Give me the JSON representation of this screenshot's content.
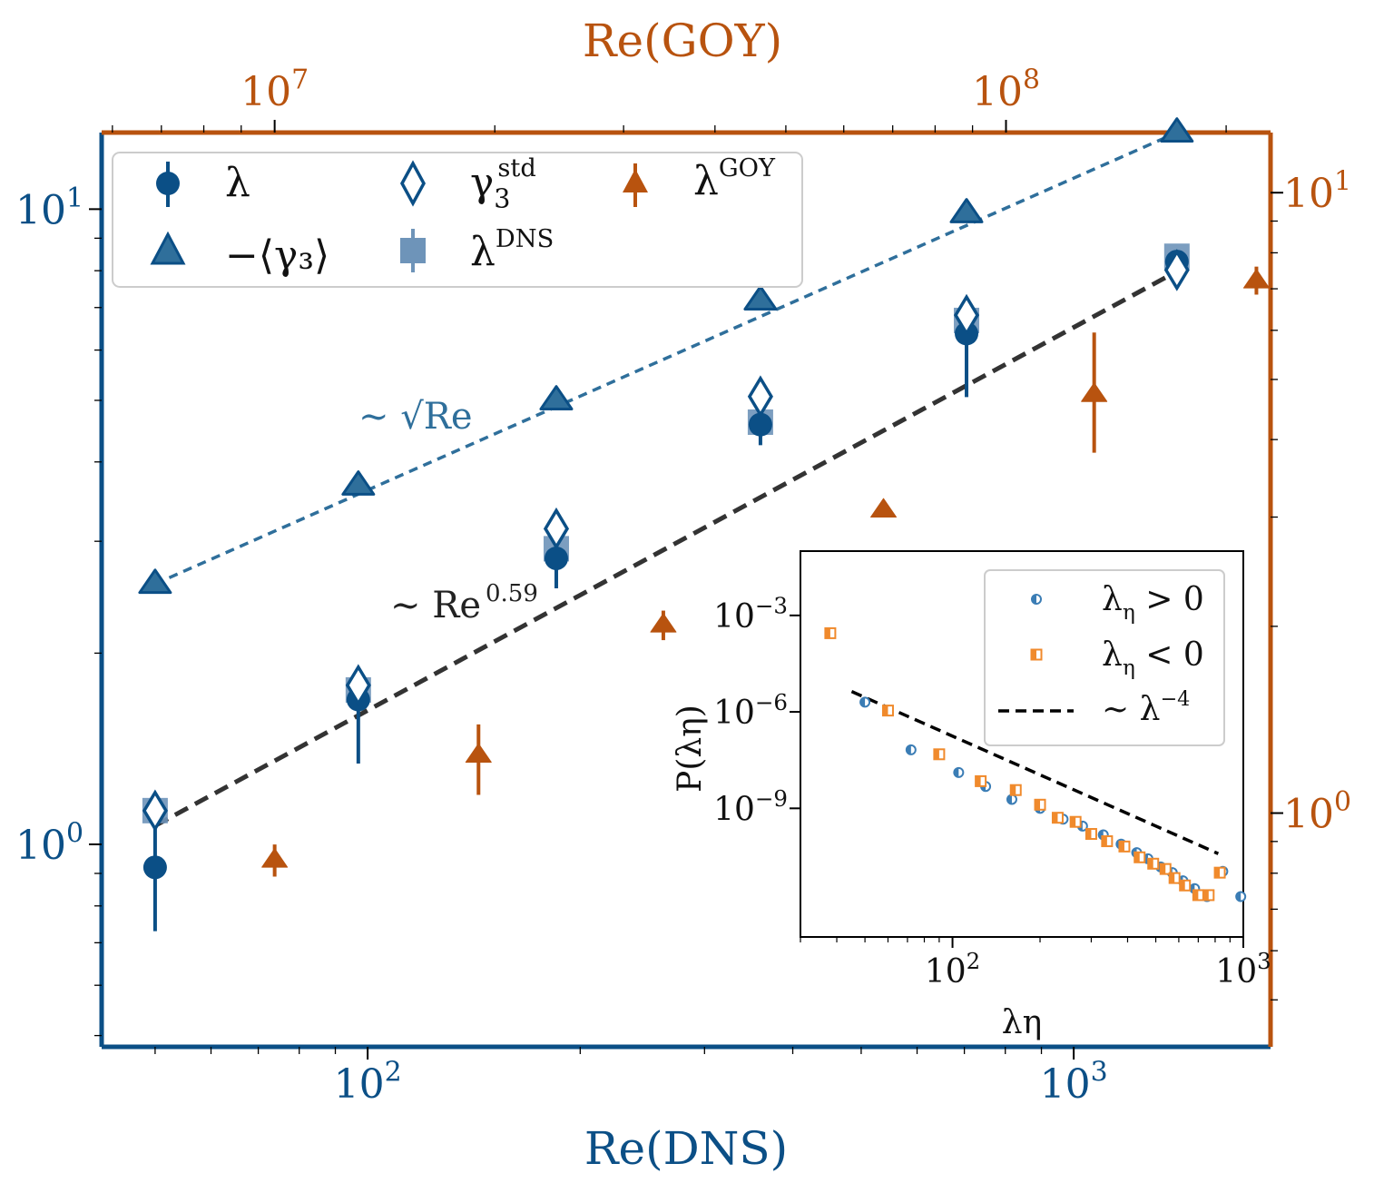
{
  "colors": {
    "dns_blue": "#0b4f86",
    "goy_orange": "#b8530f",
    "gamma_blue": "#2f6f9b",
    "square_blue": "#6e94b9",
    "fit_black": "#333333",
    "inset_pos": "#3b7db5",
    "inset_neg": "#f08a2c"
  },
  "chart_data": [
    {
      "id": "main",
      "type": "scatter",
      "xlabel": "Re(DNS)",
      "x2label": "Re(GOY)",
      "xscale": "log",
      "yscale": "log",
      "xlim": [
        42,
        1900
      ],
      "ylim": [
        0.48,
        13.2
      ],
      "x2lim": [
        5800000.0,
        230000000.0
      ],
      "y2lim": [
        0.42,
        12.5
      ],
      "xticks": [
        {
          "v": 100,
          "b": "10",
          "e": "2"
        },
        {
          "v": 1000,
          "b": "10",
          "e": "3"
        }
      ],
      "yticks": [
        {
          "v": 1,
          "b": "10",
          "e": "0"
        },
        {
          "v": 10,
          "b": "10",
          "e": "1"
        }
      ],
      "x2ticks": [
        {
          "v": 10000000,
          "b": "10",
          "e": "7"
        },
        {
          "v": 100000000,
          "b": "10",
          "e": "8"
        }
      ],
      "y2ticks": [
        {
          "v": 1,
          "b": "10",
          "e": "0"
        },
        {
          "v": 10,
          "b": "10",
          "e": "1"
        }
      ],
      "series": [
        {
          "name": "λ",
          "marker": "circle",
          "axis": "primary",
          "points": [
            {
              "x": 50,
              "y": 0.92,
              "lo": 0.73,
              "hi": 1.08
            },
            {
              "x": 97,
              "y": 1.69,
              "lo": 1.34,
              "hi": 1.87
            },
            {
              "x": 185,
              "y": 2.82,
              "lo": 2.53,
              "hi": 3.05
            },
            {
              "x": 360,
              "y": 4.58,
              "lo": 4.25,
              "hi": 4.72
            },
            {
              "x": 705,
              "y": 6.37,
              "lo": 5.06,
              "hi": 6.61
            },
            {
              "x": 1400,
              "y": 8.27,
              "lo": 8.1,
              "hi": 8.47
            }
          ]
        },
        {
          "name": "−⟨γ3⟩",
          "marker": "triangle",
          "axis": "primary",
          "points": [
            {
              "x": 50,
              "y": 2.57
            },
            {
              "x": 97,
              "y": 3.67
            },
            {
              "x": 185,
              "y": 5.0
            },
            {
              "x": 360,
              "y": 7.18
            },
            {
              "x": 705,
              "y": 9.85
            },
            {
              "x": 1400,
              "y": 13.2
            }
          ]
        },
        {
          "name": "γ3std",
          "marker": "diamond",
          "axis": "primary",
          "points": [
            {
              "x": 50,
              "y": 1.13
            },
            {
              "x": 97,
              "y": 1.78
            },
            {
              "x": 185,
              "y": 3.14
            },
            {
              "x": 360,
              "y": 5.07
            },
            {
              "x": 705,
              "y": 6.81
            },
            {
              "x": 1400,
              "y": 8.02
            }
          ]
        },
        {
          "name": "λDNS",
          "marker": "square",
          "axis": "primary",
          "points": [
            {
              "x": 50,
              "y": 1.13,
              "lo": 1.08,
              "hi": 1.17
            },
            {
              "x": 97,
              "y": 1.75,
              "lo": 1.65,
              "hi": 1.85
            },
            {
              "x": 185,
              "y": 2.92,
              "lo": 2.8,
              "hi": 3.05
            },
            {
              "x": 360,
              "y": 4.62,
              "lo": 4.47,
              "hi": 4.78
            },
            {
              "x": 705,
              "y": 6.68,
              "lo": 6.4,
              "hi": 6.95
            },
            {
              "x": 1400,
              "y": 8.43,
              "lo": 8.26,
              "hi": 8.6
            }
          ]
        },
        {
          "name": "λGOY",
          "marker": "triangle",
          "axis": "secondary",
          "points": [
            {
              "x": 10000000.0,
              "y": 0.84,
              "lo": 0.79,
              "hi": 0.89
            },
            {
              "x": 19000000.0,
              "y": 1.24,
              "lo": 1.07,
              "hi": 1.39
            },
            {
              "x": 34000000.0,
              "y": 2.01,
              "lo": 1.9,
              "hi": 2.12
            },
            {
              "x": 68000000.0,
              "y": 3.08,
              "lo": 3.0,
              "hi": 3.16
            },
            {
              "x": 132000000.0,
              "y": 4.73,
              "lo": 3.81,
              "hi": 5.95
            },
            {
              "x": 220000000.0,
              "y": 7.21,
              "lo": 6.85,
              "hi": 7.6
            }
          ]
        }
      ],
      "fits": [
        {
          "label": "∼ √Re",
          "exponent": 0.5,
          "x0": 50,
          "y0": 2.57,
          "x1": 1400,
          "y1": 13.2
        },
        {
          "label": "∼ Re",
          "label_sup": "0.59",
          "exponent": 0.59,
          "x0": 50,
          "y0": 1.07,
          "x1": 1400,
          "y1": 7.98
        }
      ],
      "legend": {
        "position": "top-left",
        "entries": [
          {
            "text": "λ",
            "sub": "",
            "sup": ""
          },
          {
            "text": "γ",
            "sub": "3",
            "sup": "std"
          },
          {
            "text": "λ",
            "sub": "",
            "sup": "GOY"
          },
          {
            "text": "−⟨γ₃⟩",
            "sub": "",
            "sup": ""
          },
          {
            "text": "λ",
            "sub": "",
            "sup": "DNS"
          }
        ]
      }
    },
    {
      "id": "inset",
      "type": "scatter",
      "xlabel": "λη",
      "ylabel": "P(λη)",
      "xscale": "log",
      "yscale": "log",
      "xlim": [
        30,
        1000
      ],
      "ylim": [
        1e-13,
        0.1
      ],
      "xticks": [
        {
          "v": 100,
          "b": "10",
          "e": "2"
        },
        {
          "v": 1000,
          "b": "10",
          "e": "3"
        }
      ],
      "yticks": [
        {
          "v": 0.001,
          "b": "10",
          "e": "−3"
        },
        {
          "v": 1e-06,
          "b": "10",
          "e": "−6"
        },
        {
          "v": 1e-09,
          "b": "10",
          "e": "−9"
        }
      ],
      "series": [
        {
          "name": "λη > 0",
          "marker": "half-circle",
          "points": [
            {
              "x": 50,
              "y": 2e-06
            },
            {
              "x": 72,
              "y": 6.6e-08
            },
            {
              "x": 105,
              "y": 1.3e-08
            },
            {
              "x": 130,
              "y": 4.8e-09
            },
            {
              "x": 160,
              "y": 1.9e-09
            },
            {
              "x": 200,
              "y": 1e-09
            },
            {
              "x": 240,
              "y": 4.6e-10
            },
            {
              "x": 280,
              "y": 2.8e-10
            },
            {
              "x": 330,
              "y": 1.5e-10
            },
            {
              "x": 380,
              "y": 7.7e-11
            },
            {
              "x": 430,
              "y": 4.2e-11
            },
            {
              "x": 470,
              "y": 2.7e-11
            },
            {
              "x": 520,
              "y": 1.5e-11
            },
            {
              "x": 570,
              "y": 1e-11
            },
            {
              "x": 620,
              "y": 5.6e-12
            },
            {
              "x": 680,
              "y": 3.2e-12
            },
            {
              "x": 750,
              "y": 1.8e-12
            },
            {
              "x": 850,
              "y": 1.1e-11
            },
            {
              "x": 980,
              "y": 1.8e-12
            }
          ]
        },
        {
          "name": "λη < 0",
          "marker": "half-square",
          "points": [
            {
              "x": 38,
              "y": 0.00028
            },
            {
              "x": 60,
              "y": 1.1e-06
            },
            {
              "x": 90,
              "y": 4.8e-08
            },
            {
              "x": 125,
              "y": 7e-09
            },
            {
              "x": 165,
              "y": 3.7e-09
            },
            {
              "x": 200,
              "y": 1.3e-09
            },
            {
              "x": 230,
              "y": 5.1e-10
            },
            {
              "x": 265,
              "y": 3.8e-10
            },
            {
              "x": 300,
              "y": 1.6e-10
            },
            {
              "x": 340,
              "y": 9.5e-11
            },
            {
              "x": 390,
              "y": 6.5e-11
            },
            {
              "x": 440,
              "y": 3e-11
            },
            {
              "x": 490,
              "y": 1.9e-11
            },
            {
              "x": 540,
              "y": 1.3e-11
            },
            {
              "x": 580,
              "y": 6.8e-12
            },
            {
              "x": 630,
              "y": 4e-12
            },
            {
              "x": 700,
              "y": 2e-12
            },
            {
              "x": 760,
              "y": 2e-12
            },
            {
              "x": 830,
              "y": 1e-11
            }
          ]
        }
      ],
      "fits": [
        {
          "label": "∼ λ",
          "label_sup": "−4",
          "exponent": -4,
          "x0": 45,
          "y0": 4.3e-06,
          "x1": 820,
          "y1": 3.9e-11
        }
      ],
      "legend": {
        "position": "top-right",
        "entries": [
          {
            "text": "λ",
            "sub": "η",
            "tail": " > 0"
          },
          {
            "text": "λ",
            "sub": "η",
            "tail": " < 0"
          },
          {
            "text": "∼ λ",
            "sub": "",
            "sup": "−4"
          }
        ]
      }
    }
  ]
}
